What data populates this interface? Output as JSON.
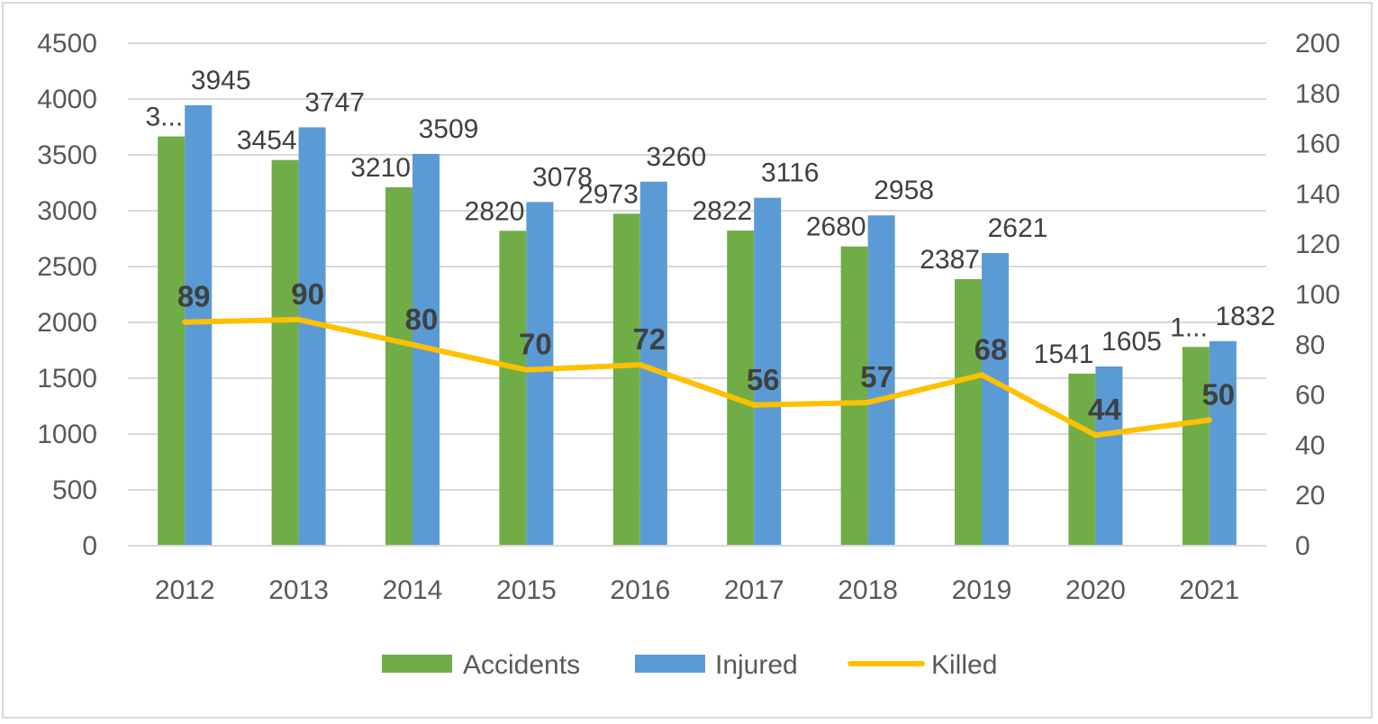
{
  "chart_data": {
    "type": "bar",
    "categories": [
      "2012",
      "2013",
      "2014",
      "2015",
      "2016",
      "2017",
      "2018",
      "2019",
      "2020",
      "2021"
    ],
    "series": [
      {
        "name": "Accidents",
        "chart": "bar",
        "axis": "left",
        "color": "#70ad47",
        "values": [
          3665,
          3454,
          3210,
          2820,
          2973,
          2822,
          2680,
          2387,
          1541,
          1780
        ],
        "labels": [
          "3...",
          "3454",
          "3210",
          "2820",
          "2973",
          "2822",
          "2680",
          "2387",
          "1541",
          "1..."
        ]
      },
      {
        "name": "Injured",
        "chart": "bar",
        "axis": "left",
        "color": "#5b9bd5",
        "values": [
          3945,
          3747,
          3509,
          3078,
          3260,
          3116,
          2958,
          2621,
          1605,
          1832
        ],
        "labels": [
          "3945",
          "3747",
          "3509",
          "3078",
          "3260",
          "3116",
          "2958",
          "2621",
          "1605",
          "1832"
        ]
      },
      {
        "name": "Killed",
        "chart": "line",
        "axis": "right",
        "color": "#ffc000",
        "values": [
          89,
          90,
          80,
          70,
          72,
          56,
          57,
          68,
          44,
          50
        ],
        "labels": [
          "89",
          "90",
          "80",
          "70",
          "72",
          "56",
          "57",
          "68",
          "44",
          "50"
        ]
      }
    ],
    "y_left": {
      "ylim": [
        0,
        4500
      ],
      "ticks": [
        "0",
        "500",
        "1000",
        "1500",
        "2000",
        "2500",
        "3000",
        "3500",
        "4000",
        "4500"
      ]
    },
    "y_right": {
      "ylim": [
        0,
        200
      ],
      "ticks": [
        "0",
        "20",
        "40",
        "60",
        "80",
        "100",
        "120",
        "140",
        "160",
        "180",
        "200"
      ]
    },
    "grid": true,
    "legend": "bottom"
  }
}
